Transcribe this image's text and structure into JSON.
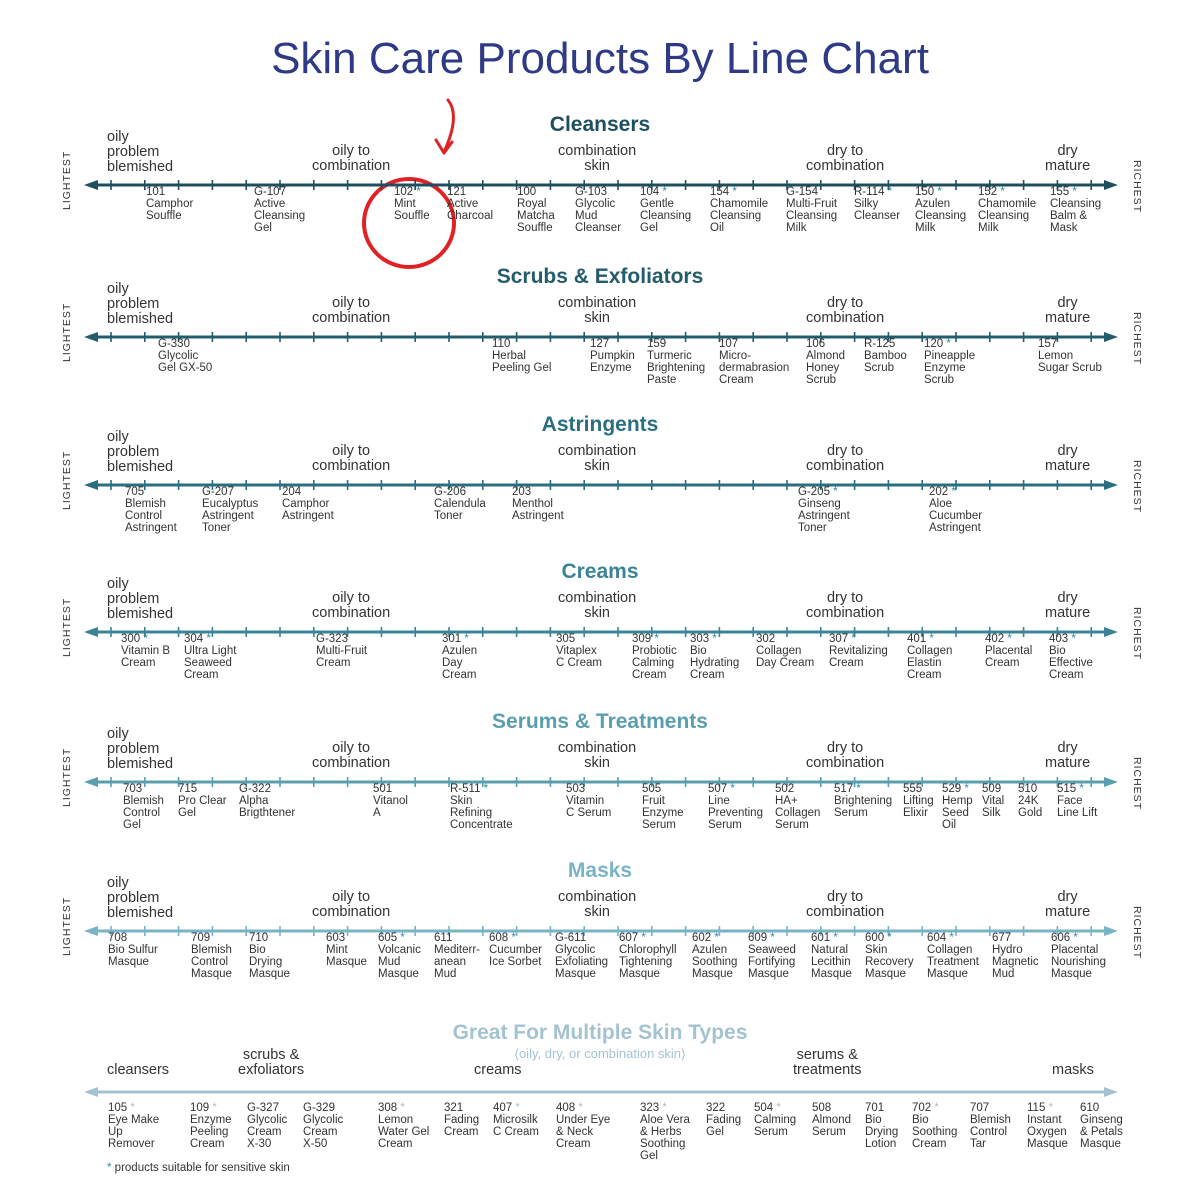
{
  "title": "Skin Care Products By Line Chart",
  "labels": {
    "oily": "oily\nproblem\nblemished",
    "oily_combo": "oily to\ncombination",
    "combo": "combination\nskin",
    "dry_combo": "dry to\ncombination",
    "dry": "dry\nmature",
    "lightest": "LIGHTEST",
    "richest": "RICHEST"
  },
  "sections": [
    {
      "title": "Cleansers",
      "color": "#1f4f5e",
      "products": [
        {
          "text": "101\nCamphor\nSouffle",
          "star": false
        },
        {
          "text": "G-107\nActive\nCleansing\nGel",
          "star": false
        },
        {
          "text": "102\nMint\nSouffle",
          "star": true
        },
        {
          "text": "121\nActive\nCharcoal",
          "star": false
        },
        {
          "text": "100\nRoyal\nMatcha\nSouffle",
          "star": false
        },
        {
          "text": "G-103\nGlycolic\nMud\nCleanser",
          "star": false
        },
        {
          "text": "104\nGentle\nCleansing\nGel",
          "star": true
        },
        {
          "text": "154\nChamomile\nCleansing\nOil",
          "star": true
        },
        {
          "text": "G-154\nMulti-Fruit\nCleansing\nMilk",
          "star": false
        },
        {
          "text": "R-114\nSilky\nCleanser",
          "star": true
        },
        {
          "text": "150\nAzulen\nCleansing\nMilk",
          "star": true
        },
        {
          "text": "152\nChamomile\nCleansing\nMilk",
          "star": true
        },
        {
          "text": "155\nCleansing\nBalm &\nMask",
          "star": true
        }
      ]
    },
    {
      "title": "Scrubs & Exfoliators",
      "color": "#235c6b",
      "products": [
        {
          "text": "G-330\nGlycolic\nGel GX-50",
          "star": false
        },
        {
          "text": "110\nHerbal\nPeeling Gel",
          "star": false
        },
        {
          "text": "127\nPumpkin\nEnzyme",
          "star": false
        },
        {
          "text": "159\nTurmeric\nBrightening\nPaste",
          "star": false
        },
        {
          "text": "107\nMicro-\ndermabrasion\nCream",
          "star": false
        },
        {
          "text": "106\nAlmond\nHoney\nScrub",
          "star": false
        },
        {
          "text": "R-125\nBamboo\nScrub",
          "star": false
        },
        {
          "text": "120\nPineapple\nEnzyme\nScrub",
          "star": true
        },
        {
          "text": "157\nLemon\nSugar Scrub",
          "star": false
        }
      ]
    },
    {
      "title": "Astringents",
      "color": "#2a6f80",
      "products": [
        {
          "text": "705\nBlemish\nControl\nAstringent",
          "star": false
        },
        {
          "text": "G-207\nEucalyptus\nAstringent\nToner",
          "star": false
        },
        {
          "text": "204\nCamphor\nAstringent",
          "star": false
        },
        {
          "text": "G-206\nCalendula\nToner",
          "star": false
        },
        {
          "text": "203\nMenthol\nAstringent",
          "star": false
        },
        {
          "text": "G-205\nGinseng\nAstringent\nToner",
          "star": true
        },
        {
          "text": "202\nAloe\nCucumber\nAstringent",
          "star": true
        }
      ]
    },
    {
      "title": "Creams",
      "color": "#3b8496",
      "products": [
        {
          "text": "300\nVitamin B\nCream",
          "star": true
        },
        {
          "text": "304\nUltra Light\nSeaweed\nCream",
          "star": true
        },
        {
          "text": "G-323\nMulti-Fruit\nCream",
          "star": false
        },
        {
          "text": "301\nAzulen\nDay\nCream",
          "star": true
        },
        {
          "text": "305\nVitaplex\nC Cream",
          "star": false
        },
        {
          "text": "309\nProbiotic\nCalming\nCream",
          "star": true
        },
        {
          "text": "303\nBio\nHydrating\nCream",
          "star": true
        },
        {
          "text": "302\nCollagen\nDay Cream",
          "star": false
        },
        {
          "text": "307\nRevitalizing\nCream",
          "star": true
        },
        {
          "text": "401\nCollagen\nElastin\nCream",
          "star": true
        },
        {
          "text": "402\nPlacental\nCream",
          "star": true
        },
        {
          "text": "403\nBio\nEffective\nCream",
          "star": true
        }
      ]
    },
    {
      "title": "Serums & Treatments",
      "color": "#5a9fae",
      "products": [
        {
          "text": "703\nBlemish\nControl\nGel",
          "star": false
        },
        {
          "text": "715\nPro Clear\nGel",
          "star": false
        },
        {
          "text": "G-322\nAlpha\nBrigthtener",
          "star": false
        },
        {
          "text": "501\nVitanol\nA",
          "star": false
        },
        {
          "text": "R-511\nSkin\nRefining\nConcentrate",
          "star": true
        },
        {
          "text": "503\nVitamin\nC Serum",
          "star": false
        },
        {
          "text": "505\nFruit\nEnzyme\nSerum",
          "star": false
        },
        {
          "text": "507\nLine\nPreventing\nSerum",
          "star": true
        },
        {
          "text": "502\nHA+\nCollagen\nSerum",
          "star": false
        },
        {
          "text": "517\nBrightening\nSerum",
          "star": true
        },
        {
          "text": "555\nLifting\nElixir",
          "star": false
        },
        {
          "text": "529\nHemp\nSeed\nOil",
          "star": true
        },
        {
          "text": "509\nVital\nSilk",
          "star": false
        },
        {
          "text": "510\n24K\nGold",
          "star": false
        },
        {
          "text": "515\nFace\nLine Lift",
          "star": true
        }
      ]
    },
    {
      "title": "Masks",
      "color": "#79b3c6",
      "products": [
        {
          "text": "708\nBio Sulfur\nMasque",
          "star": false
        },
        {
          "text": "709\nBlemish\nControl\nMasque",
          "star": false
        },
        {
          "text": "710\nBio\nDrying\nMasque",
          "star": false
        },
        {
          "text": "603\nMint\nMasque",
          "star": false
        },
        {
          "text": "605\nVolcanic\nMud\nMasque",
          "star": true
        },
        {
          "text": "611\nMediterr-\nanean\nMud",
          "star": false
        },
        {
          "text": "608\nCucumber\nIce Sorbet",
          "star": true
        },
        {
          "text": "G-611\nGlycolic\nExfoliating\nMasque",
          "star": false
        },
        {
          "text": "607\nChlorophyll\nTightening\nMasque",
          "star": true
        },
        {
          "text": "602\nAzulen\nSoothing\nMasque",
          "star": true
        },
        {
          "text": "609\nSeaweed\nFortifying\nMasque",
          "star": true
        },
        {
          "text": "601\nNatural\nLecithin\nMasque",
          "star": true
        },
        {
          "text": "600\nSkin\nRecovery\nMasque",
          "star": true
        },
        {
          "text": "604\nCollagen\nTreatment\nMasque",
          "star": true
        },
        {
          "text": "677\nHydro\nMagnetic\nMud",
          "star": false
        },
        {
          "text": "606\nPlacental\nNourishing\nMasque",
          "star": true
        }
      ]
    }
  ],
  "multiple": {
    "title": "Great For Multiple Skin Types",
    "subtitle": "(oily, dry, or combination skin)",
    "color": "#a4c3d2",
    "categories": [
      "cleansers",
      "scrubs &\nexfoliators",
      "creams",
      "serums &\ntreatments",
      "masks"
    ],
    "products": [
      {
        "text": "105\nEye Make\nUp\nRemover",
        "star": true
      },
      {
        "text": "109\nEnzyme\nPeeling\nCream",
        "star": true
      },
      {
        "text": "G-327\nGlycolic\nCream\nX-30",
        "star": false
      },
      {
        "text": "G-329\nGlycolic\nCream\nX-50",
        "star": false
      },
      {
        "text": "308\nLemon\nWater Gel\nCream",
        "star": true
      },
      {
        "text": "321\nFading\nCream",
        "star": false
      },
      {
        "text": "407\nMicrosilk\nC Cream",
        "star": true
      },
      {
        "text": "408\nUnder Eye\n& Neck\nCream",
        "star": true
      },
      {
        "text": "323\nAloe Vera\n& Herbs\nSoothing\nGel",
        "star": true
      },
      {
        "text": "322\nFading\nGel",
        "star": false
      },
      {
        "text": "504\nCalming\nSerum",
        "star": true
      },
      {
        "text": "508\nAlmond\nSerum",
        "star": false
      },
      {
        "text": "701\nBio\nDrying\nLotion",
        "star": false
      },
      {
        "text": "702\nBio\nSoothing\nCream",
        "star": true
      },
      {
        "text": "707\nBlemish\nControl\nTar",
        "star": false
      },
      {
        "text": "115\nInstant\nOxygen\nMasque",
        "star": true
      },
      {
        "text": "610\nGinseng\n& Petals\nMasque",
        "star": false
      }
    ]
  },
  "footnote": "* products suitable for sensitive skin"
}
